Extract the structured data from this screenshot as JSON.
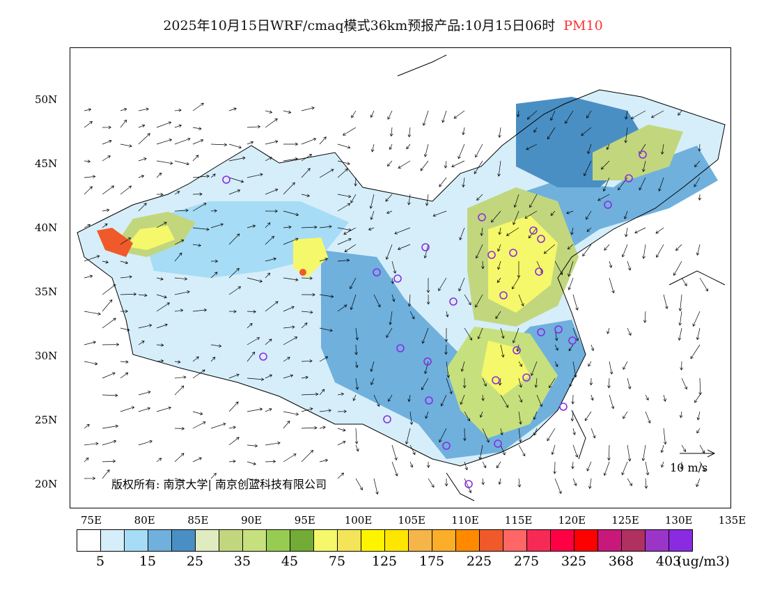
{
  "title": {
    "text": "2025年10月15日WRF/cmaq模式36km预报产品:10月15日06时",
    "pollutant": "PM10",
    "pollutant_color": "#ff3030"
  },
  "lat_labels": [
    "50N",
    "45N",
    "40N",
    "35N",
    "30N",
    "25N",
    "20N"
  ],
  "lon_labels": [
    "75E",
    "80E",
    "85E",
    "90E",
    "95E",
    "100E",
    "105E",
    "110E",
    "115E",
    "120E",
    "125E",
    "130E",
    "135E"
  ],
  "colorbar": {
    "colors": [
      "#ffffff",
      "#d6eef9",
      "#a6dcf5",
      "#6fb0dd",
      "#4a8fc3",
      "#e0ebc0",
      "#c2d67e",
      "#c6e07e",
      "#96cc52",
      "#72ab35",
      "#f5f86a",
      "#f3e45a",
      "#fff400",
      "#ffe600",
      "#f5b548",
      "#fdae28",
      "#ff8a00",
      "#f05a2a",
      "#ff6666",
      "#f62a55",
      "#ff0044",
      "#ff0000",
      "#c8187a",
      "#b03060",
      "#9b35c8",
      "#8a2be2"
    ],
    "labels": [
      "5",
      "15",
      "25",
      "35",
      "45",
      "75",
      "125",
      "175",
      "225",
      "275",
      "325",
      "368",
      "403"
    ],
    "unit": "(ug/m3)"
  },
  "copyright": "版权所有: 南京大学| 南京创蓝科技有限公司",
  "reference_vector": "10 m/s"
}
